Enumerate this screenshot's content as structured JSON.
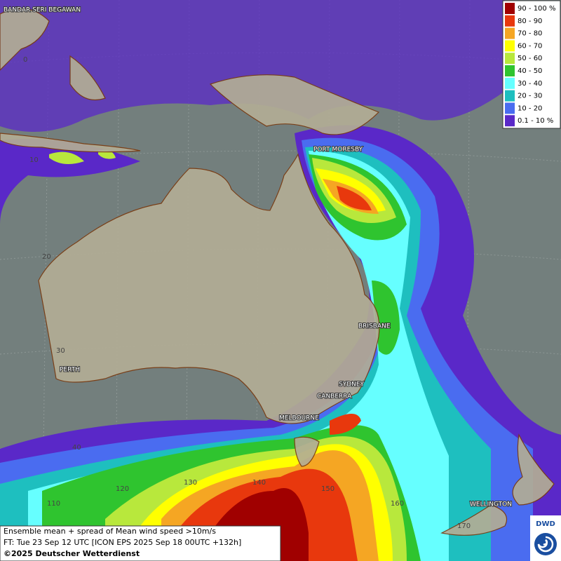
{
  "map": {
    "cities": [
      "BANDAR SERI BEGAWAN",
      "PORT MORESBY",
      "BRISBANE",
      "SYDNEY",
      "CANBERRA",
      "MELBOURNE",
      "PERTH",
      "WELLINGTON"
    ],
    "grid_labels": [
      "0",
      "10",
      "20",
      "30",
      "40",
      "110",
      "120",
      "130",
      "140",
      "150",
      "160",
      "170"
    ]
  },
  "legend": {
    "entries": [
      {
        "label": "90 - 100 %",
        "color": "#a00000"
      },
      {
        "label": "80 - 90",
        "color": "#e8380d"
      },
      {
        "label": "70 - 80",
        "color": "#f5a623"
      },
      {
        "label": "60 - 70",
        "color": "#ffff00"
      },
      {
        "label": "50 - 60",
        "color": "#b8e83c"
      },
      {
        "label": "40 - 50",
        "color": "#2fc42f"
      },
      {
        "label": "30 - 40",
        "color": "#66ffff"
      },
      {
        "label": "20 - 30",
        "color": "#1ebfbf"
      },
      {
        "label": "10 - 20",
        "color": "#4a6cf0"
      },
      {
        "label": "0.1 - 10 %",
        "color": "#5a28c8"
      }
    ]
  },
  "caption": {
    "lines": [
      "Ensemble mean + spread of Mean wind speed >10m/s",
      "FT: Tue 23 Sep 12 UTC [ICON EPS 2025 Sep 18 00UTC +132h]",
      "©2025 Deutscher Wetterdienst"
    ]
  },
  "logo": "DWD"
}
